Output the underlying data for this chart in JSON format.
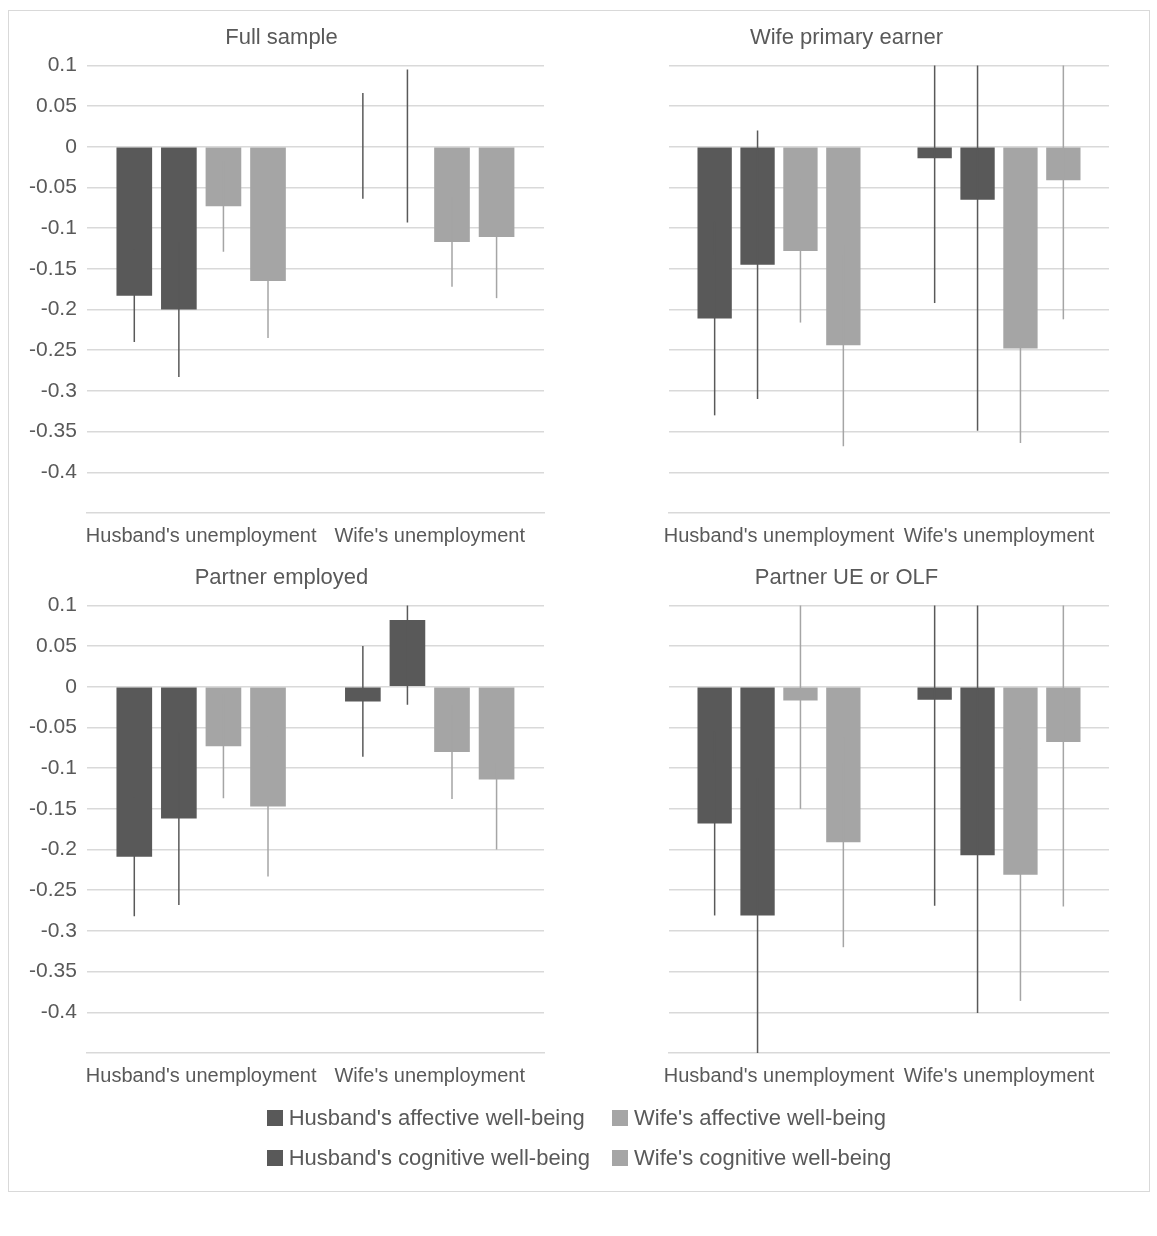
{
  "chart_data": [
    {
      "type": "bar",
      "title": "Full sample",
      "categories": [
        "Husband's unemployment",
        "Wife's unemployment"
      ],
      "ylim": [
        -0.45,
        0.1
      ],
      "yticks": [
        0.1,
        0.05,
        0,
        -0.05,
        -0.1,
        -0.15,
        -0.2,
        -0.25,
        -0.3,
        -0.35,
        -0.4
      ],
      "grid": "y",
      "legend": "bottom",
      "series": [
        {
          "name": "Husband's affective well-being",
          "color": "#595959",
          "values": [
            -0.183,
            0.001
          ],
          "errors": [
            0.057,
            0.065
          ]
        },
        {
          "name": "Husband's cognitive well-being",
          "color": "#595959",
          "values": [
            -0.2,
            0.001
          ],
          "errors": [
            0.083,
            0.094
          ]
        },
        {
          "name": "Wife's affective well-being",
          "color": "#a5a5a5",
          "values": [
            -0.073,
            -0.117
          ],
          "errors": [
            0.056,
            0.055
          ]
        },
        {
          "name": "Wife's cognitive well-being",
          "color": "#a5a5a5",
          "values": [
            -0.165,
            -0.111
          ],
          "errors": [
            0.07,
            0.075
          ]
        }
      ]
    },
    {
      "type": "bar",
      "title": "Wife primary earner",
      "categories": [
        "Husband's unemployment",
        "Wife's unemployment"
      ],
      "ylim": [
        -0.45,
        0.1
      ],
      "yticks": [
        0.1,
        0.05,
        0,
        -0.05,
        -0.1,
        -0.15,
        -0.2,
        -0.25,
        -0.3,
        -0.35,
        -0.4
      ],
      "grid": "y",
      "tick_labels": "x",
      "series": [
        {
          "color": "#595959",
          "values": [
            -0.211,
            -0.014
          ],
          "errors": [
            0.119,
            [
              -0.192,
              0.1
            ]
          ]
        },
        {
          "color": "#595959",
          "values": [
            -0.145,
            -0.065
          ],
          "errors": [
            0.165,
            [
              -0.349,
              0.1
            ]
          ]
        },
        {
          "color": "#a5a5a5",
          "values": [
            -0.128,
            -0.248
          ],
          "errors": [
            0.088,
            0.116
          ]
        },
        {
          "color": "#a5a5a5",
          "values": [
            -0.244,
            -0.041
          ],
          "errors": [
            0.124,
            [
              -0.212,
              0.1
            ]
          ]
        }
      ]
    },
    {
      "type": "bar",
      "title": "Partner employed",
      "categories": [
        "Husband's unemployment",
        "Wife's unemployment"
      ],
      "ylim": [
        -0.45,
        0.1
      ],
      "yticks": [
        0.1,
        0.05,
        0,
        -0.05,
        -0.1,
        -0.15,
        -0.2,
        -0.25,
        -0.3,
        -0.35,
        -0.4
      ],
      "grid": "y",
      "series": [
        {
          "color": "#595959",
          "values": [
            -0.209,
            -0.018
          ],
          "errors": [
            0.073,
            0.068
          ]
        },
        {
          "color": "#595959",
          "values": [
            -0.162,
            0.082
          ],
          "errors": [
            0.106,
            [
              -0.022,
              0.1
            ]
          ]
        },
        {
          "color": "#a5a5a5",
          "values": [
            -0.073,
            -0.08
          ],
          "errors": [
            0.064,
            0.058
          ]
        },
        {
          "color": "#a5a5a5",
          "values": [
            -0.147,
            -0.114
          ],
          "errors": [
            0.086,
            0.086
          ]
        }
      ]
    },
    {
      "type": "bar",
      "title": "Partner UE or OLF",
      "categories": [
        "Husband's unemployment",
        "Wife's unemployment"
      ],
      "ylim": [
        -0.45,
        0.1
      ],
      "yticks": [
        0.1,
        0.05,
        0,
        -0.05,
        -0.1,
        -0.15,
        -0.2,
        -0.25,
        -0.3,
        -0.35,
        -0.4
      ],
      "grid": "y",
      "tick_labels": "x",
      "series": [
        {
          "color": "#595959",
          "values": [
            -0.168,
            -0.016
          ],
          "errors": [
            0.113,
            [
              -0.269,
              0.1
            ]
          ]
        },
        {
          "color": "#595959",
          "values": [
            -0.281,
            -0.207
          ],
          "errors": [
            0.169,
            [
              -0.401,
              0.1
            ]
          ]
        },
        {
          "color": "#a5a5a5",
          "values": [
            -0.017,
            -0.231
          ],
          "errors": [
            [
              -0.15,
              0.1
            ],
            0.155
          ]
        },
        {
          "color": "#a5a5a5",
          "values": [
            -0.191,
            -0.068
          ],
          "errors": [
            0.129,
            [
              -0.27,
              0.1
            ]
          ]
        }
      ]
    }
  ]
}
